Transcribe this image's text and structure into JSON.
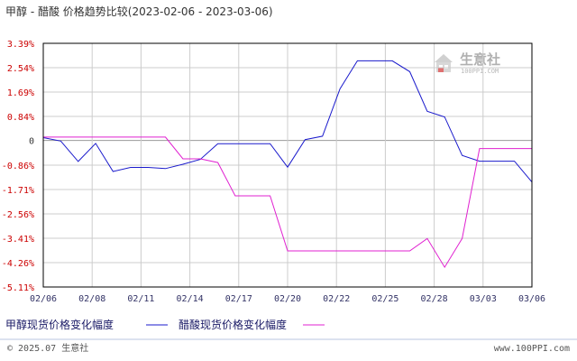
{
  "title": "甲醇 - 醋酸 价格趋势比较(2023-02-06 - 2023-03-06)",
  "watermark": {
    "brand": "生意社",
    "url": "100PPI.COM"
  },
  "footer": {
    "copyright": "© 2025.07 生意社",
    "site": "www.100PPI.com"
  },
  "colors": {
    "series1": "#1a1acc",
    "series2": "#e020d0",
    "positive": "#cc0000",
    "negative": "#cc0000",
    "zero": "#333333",
    "frame": "#000000",
    "grid": "#cccccc"
  },
  "chart_data": {
    "type": "line",
    "title": "甲醇 - 醋酸 价格趋势比较(2023-02-06 - 2023-03-06)",
    "x_tick_labels": [
      "02/06",
      "02/08",
      "02/11",
      "02/14",
      "02/17",
      "02/20",
      "02/22",
      "02/25",
      "02/28",
      "03/03",
      "03/06"
    ],
    "y_tick_labels": [
      "3.39%",
      "2.54%",
      "1.69%",
      "0.84%",
      "0",
      "-0.86%",
      "-1.71%",
      "-2.56%",
      "-3.41%",
      "-4.26%",
      "-5.11%"
    ],
    "y_tick_values": [
      3.39,
      2.54,
      1.69,
      0.84,
      0,
      -0.86,
      -1.71,
      -2.56,
      -3.41,
      -4.26,
      -5.11
    ],
    "ylim": [
      -5.11,
      3.39
    ],
    "x_range": [
      0,
      28
    ],
    "grid": true,
    "legend_position": "bottom-left",
    "series": [
      {
        "name": "甲醇现货价格变化幅度",
        "x": [
          0,
          1,
          2,
          3,
          4,
          5,
          6,
          7,
          8,
          9,
          10,
          11,
          12,
          13,
          14,
          15,
          16,
          17,
          18,
          19,
          20,
          21,
          22,
          23,
          24,
          25,
          26,
          27,
          28
        ],
        "y": [
          0.1,
          -0.02,
          -0.73,
          -0.1,
          -1.08,
          -0.94,
          -0.94,
          -0.98,
          -0.83,
          -0.66,
          -0.11,
          -0.11,
          -0.11,
          -0.11,
          -0.93,
          0.03,
          0.15,
          1.8,
          2.78,
          2.78,
          2.78,
          2.4,
          1.02,
          0.82,
          -0.52,
          -0.72,
          -0.72,
          -0.72,
          -1.45
        ]
      },
      {
        "name": "醋酸现货价格变化幅度",
        "x": [
          0,
          1,
          2,
          3,
          4,
          5,
          6,
          7,
          8,
          9,
          10,
          11,
          12,
          13,
          14,
          15,
          16,
          17,
          18,
          19,
          20,
          21,
          22,
          23,
          24,
          25,
          26,
          27,
          28
        ],
        "y": [
          0.12,
          0.12,
          0.12,
          0.12,
          0.12,
          0.12,
          0.12,
          0.12,
          -0.64,
          -0.64,
          -0.77,
          -1.93,
          -1.93,
          -1.93,
          -3.85,
          -3.85,
          -3.85,
          -3.85,
          -3.85,
          -3.85,
          -3.85,
          -3.85,
          -3.42,
          -4.42,
          -3.42,
          -0.28,
          -0.28,
          -0.28,
          -0.28
        ]
      }
    ]
  }
}
